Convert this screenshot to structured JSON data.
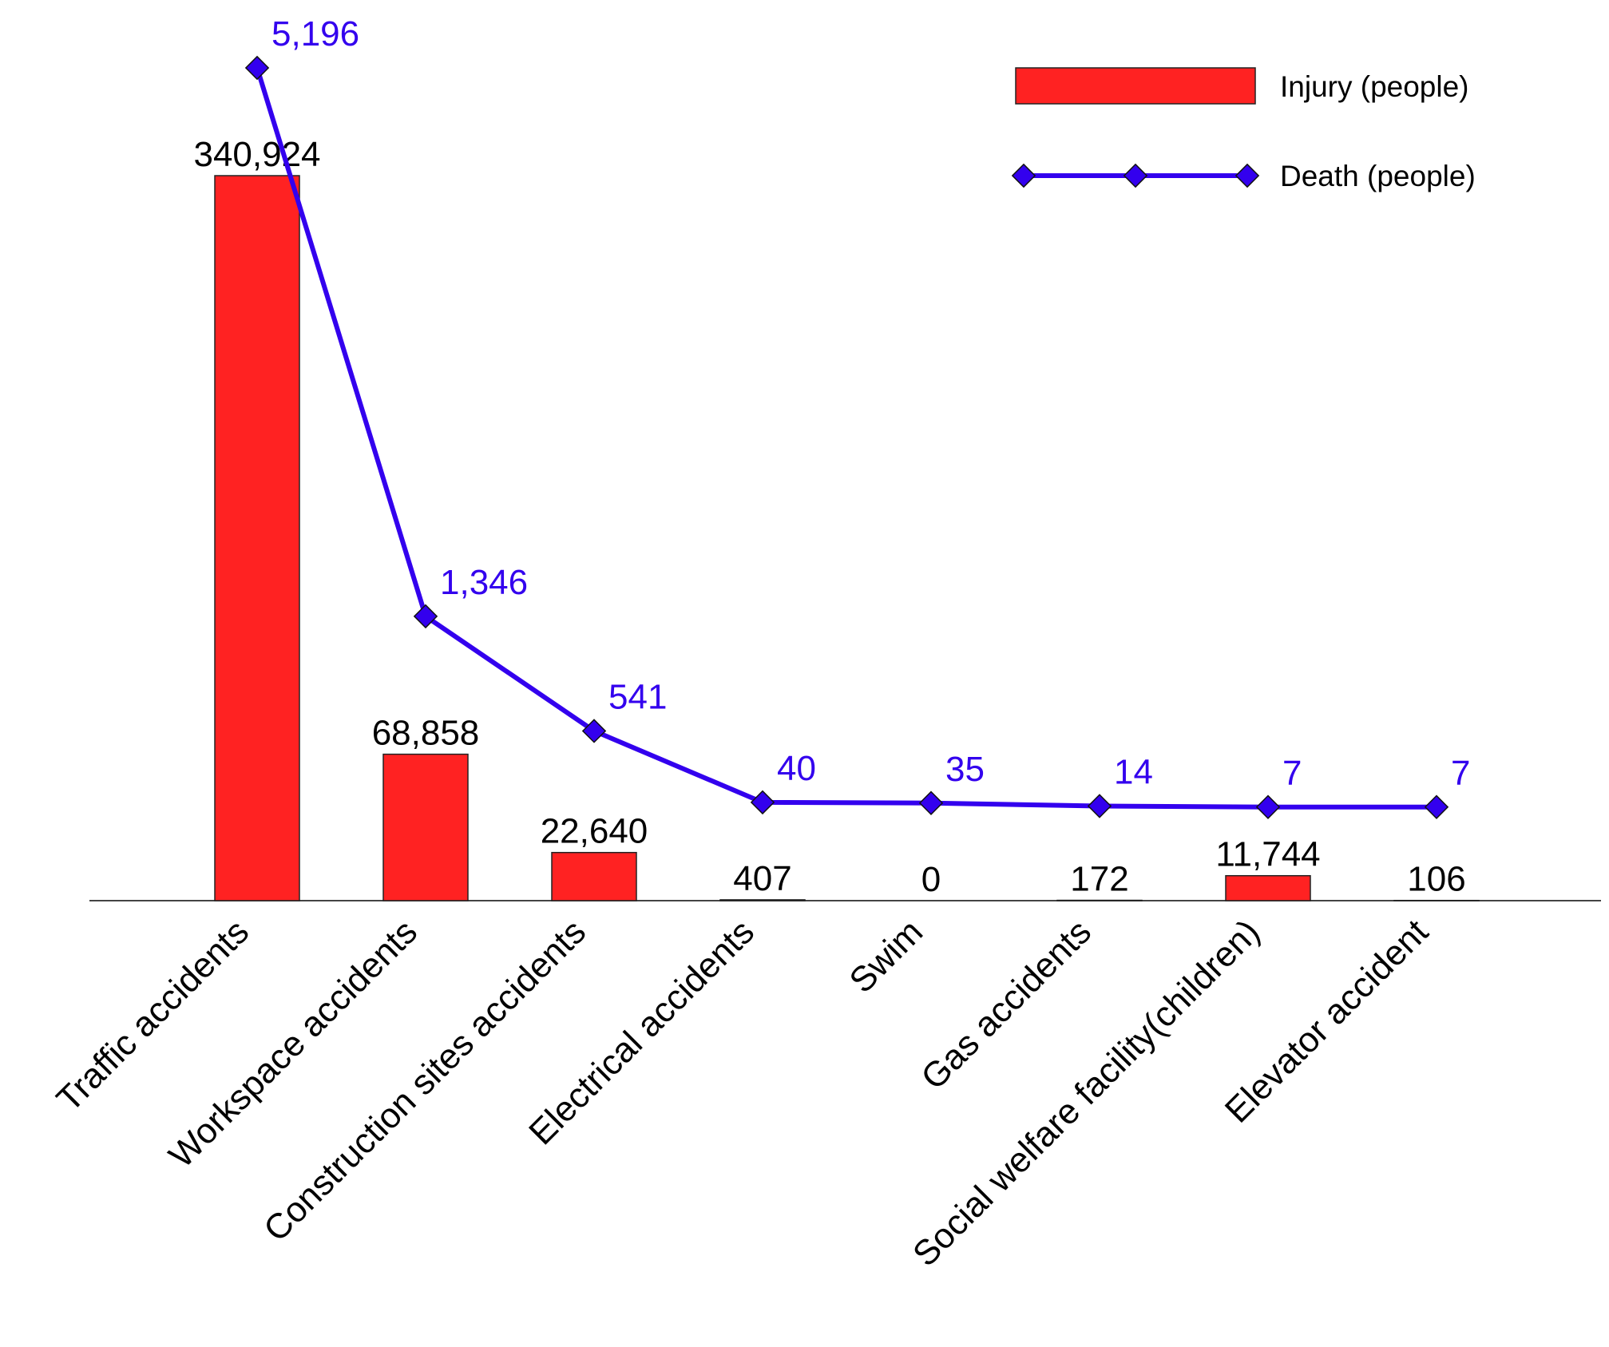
{
  "chart_data": {
    "type": "bar",
    "categories": [
      "Traffic accidents",
      "Workspace accidents",
      "Construction sites accidents",
      "Electrical accidents",
      "Swim",
      "Gas accidents",
      "Social welfare facility(children)",
      "Elevator accident"
    ],
    "series": [
      {
        "name": "Injury (people)",
        "type": "bar",
        "values": [
          340924,
          68858,
          22640,
          407,
          0,
          172,
          11744,
          106
        ],
        "labels": [
          "340,924",
          "68,858",
          "22,640",
          "407",
          "0",
          "172",
          "11,744",
          "106"
        ],
        "color": "#ff2222"
      },
      {
        "name": "Death (people)",
        "type": "line",
        "marker": "diamond",
        "values": [
          5196,
          1346,
          541,
          40,
          35,
          14,
          7,
          7
        ],
        "labels": [
          "5,196",
          "1,346",
          "541",
          "40",
          "35",
          "14",
          "7",
          "7"
        ],
        "color": "#3300ee"
      }
    ],
    "injury_ylim": [
      0,
      340924
    ],
    "death_ylim": [
      0,
      5196
    ],
    "legend_position": "top-right",
    "title": "",
    "xlabel": "",
    "ylabel": ""
  }
}
